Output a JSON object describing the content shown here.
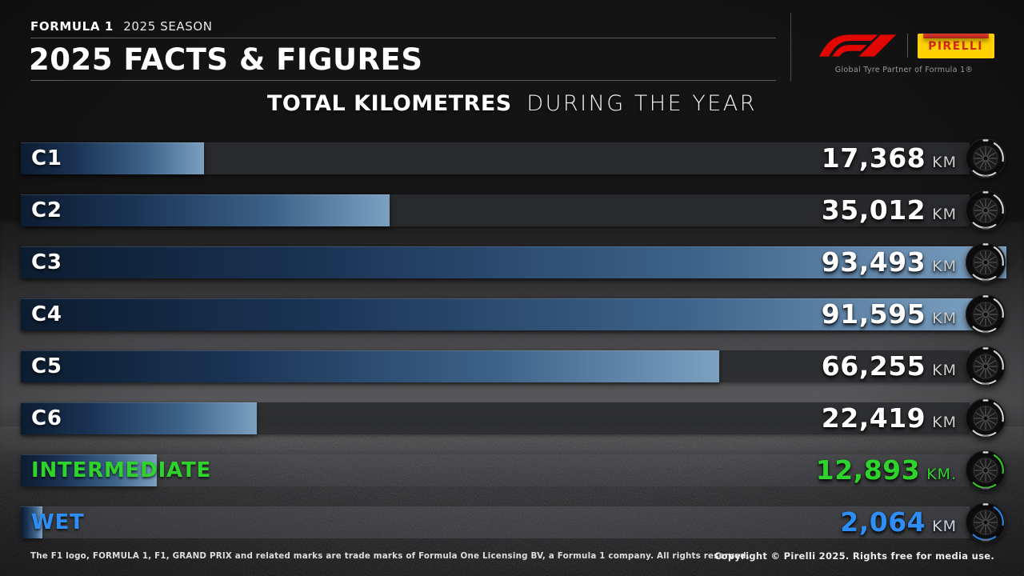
{
  "header": {
    "kicker_bold": "FORMULA 1",
    "kicker_regular": "2025 SEASON",
    "title": "2025 FACTS & FIGURES",
    "pirelli_logo_text": "PIRELLI",
    "partner_tagline": "Global Tyre Partner of Formula 1®"
  },
  "subtitle": {
    "emphasis": "TOTAL KILOMETRES",
    "regular": "DURING THE YEAR"
  },
  "chart_data": {
    "type": "bar",
    "orientation": "horizontal",
    "title": "TOTAL KILOMETRES DURING THE YEAR",
    "unit": "KM",
    "xlim": [
      0,
      93493
    ],
    "grid": false,
    "categories": [
      "C1",
      "C2",
      "C3",
      "C4",
      "C5",
      "C6",
      "INTERMEDIATE",
      "WET"
    ],
    "values": [
      17368,
      35012,
      93493,
      91595,
      66255,
      22419,
      12893,
      2064
    ],
    "value_labels": [
      "17,368",
      "35,012",
      "93,493",
      "91,595",
      "66,255",
      "22,419",
      "12,893",
      "2,064"
    ],
    "unit_labels": [
      "KM",
      "KM",
      "KM",
      "KM",
      "KM",
      "KM",
      "KM.",
      "KM"
    ],
    "accent_colors": [
      "#ffffff",
      "#ffffff",
      "#ffffff",
      "#ffffff",
      "#ffffff",
      "#ffffff",
      "#2ed32b",
      "#2f8ef5"
    ],
    "unit_colors": [
      "#cfcfcf",
      "#cfcfcf",
      "#cfcfcf",
      "#cfcfcf",
      "#cfcfcf",
      "#cfcfcf",
      "#2ed32b",
      "#c9d4e2"
    ],
    "tyre_rim_colors": [
      "#e6e6e6",
      "#e6e6e6",
      "#e6e6e6",
      "#e6e6e6",
      "#e6e6e6",
      "#e6e6e6",
      "#3fd12f",
      "#2f8ef5"
    ],
    "bar_gradient": [
      "#0c1c30",
      "#7ca0c0"
    ],
    "colors": {
      "f1_red": "#e10600",
      "pirelli_yellow": "#FFD100",
      "pirelli_red": "#d52b1e"
    }
  },
  "footer": {
    "left": "The F1 logo, FORMULA 1, F1, GRAND PRIX and related marks are trade marks of Formula One Licensing BV, a Formula 1 company. All rights reserved.",
    "right": "Copyright © Pirelli 2025. Rights free for media use."
  }
}
